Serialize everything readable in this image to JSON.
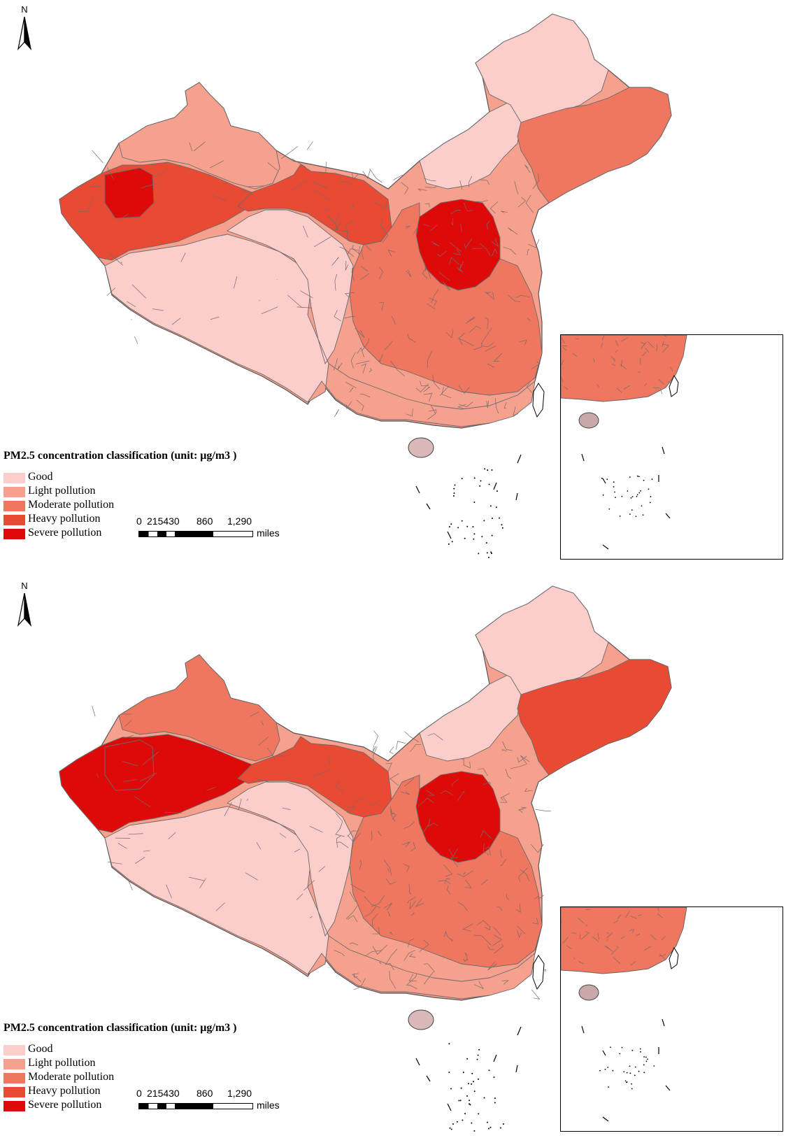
{
  "legend": {
    "title": "PM2.5 concentration classification (unit: μg/m3 )",
    "classes": [
      {
        "label": "Good",
        "color": "#fbcdcb"
      },
      {
        "label": "Light pollution",
        "color": "#f6a08e"
      },
      {
        "label": "Moderate pollution",
        "color": "#ef775f"
      },
      {
        "label": "Heavy pollution",
        "color": "#e84a33"
      },
      {
        "label": "Severe pollution",
        "color": "#de0a0a"
      }
    ]
  },
  "scale_bar": {
    "ticks": [
      "0",
      "215430",
      "860",
      "1,290"
    ],
    "units": "miles"
  },
  "north_arrow": {
    "label": "N",
    "icon": "north-arrow-icon"
  },
  "maps": [
    {
      "panel": "top",
      "regions": {
        "northeast_north": "Good",
        "northeast_south": "Moderate pollution",
        "inner_mongolia": "Good",
        "north_china_plain": "Severe pollution",
        "central_east": "Moderate pollution",
        "south": "Light pollution",
        "xinjiang_north": "Light pollution",
        "xinjiang_south_west": "Heavy pollution",
        "tarim_core": "Severe pollution",
        "tibet": "Good",
        "qinghai": "Good",
        "gansu_ningxia": "Heavy pollution"
      }
    },
    {
      "panel": "bottom",
      "regions": {
        "northeast_north": "Good",
        "northeast_south": "Heavy pollution",
        "inner_mongolia": "Good",
        "north_china_plain": "Severe pollution",
        "central_east": "Moderate pollution",
        "south": "Light pollution",
        "xinjiang_north": "Moderate pollution",
        "xinjiang_south_west": "Severe pollution",
        "tarim_core": "Severe pollution",
        "tibet": "Good",
        "qinghai": "Good",
        "gansu_ningxia": "Heavy pollution"
      }
    }
  ]
}
